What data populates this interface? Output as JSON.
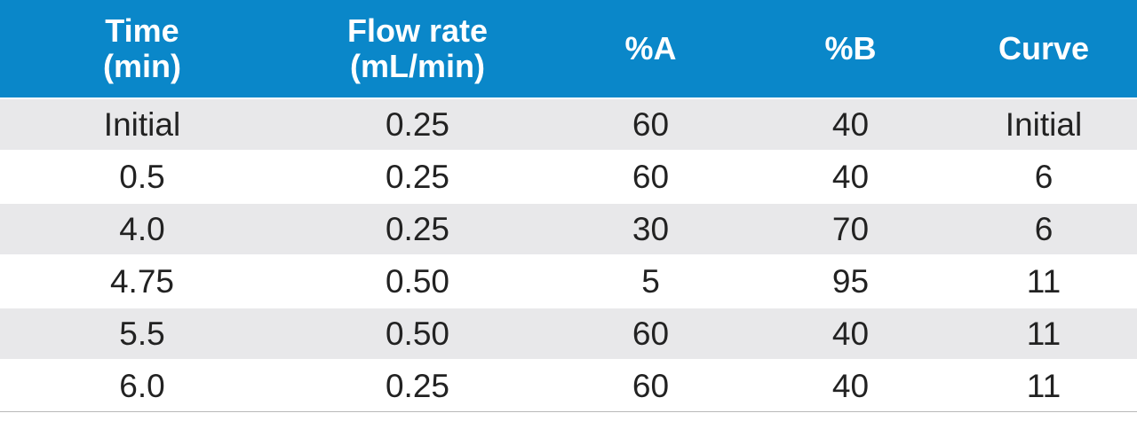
{
  "columns": [
    {
      "label": "Time\n(min)"
    },
    {
      "label": "Flow rate\n(mL/min)"
    },
    {
      "label": "%A"
    },
    {
      "label": "%B"
    },
    {
      "label": "Curve"
    }
  ],
  "rows": [
    [
      "Initial",
      "0.25",
      "60",
      "40",
      "Initial"
    ],
    [
      "0.5",
      "0.25",
      "60",
      "40",
      "6"
    ],
    [
      "4.0",
      "0.25",
      "30",
      "70",
      "6"
    ],
    [
      "4.75",
      "0.50",
      "5",
      "95",
      "11"
    ],
    [
      "5.5",
      "0.50",
      "60",
      "40",
      "11"
    ],
    [
      "6.0",
      "0.25",
      "60",
      "40",
      "11"
    ]
  ],
  "colors": {
    "header_background": "#0a87c9",
    "header_text": "#ffffff",
    "stripe": "#e8e8ea"
  }
}
